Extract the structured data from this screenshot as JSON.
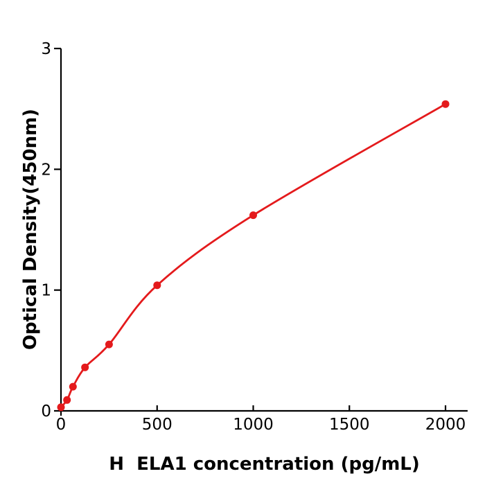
{
  "figure": {
    "background": "#ffffff"
  },
  "chart_data": {
    "type": "line",
    "subtype": "scatter-with-fitted-curve",
    "title": "",
    "xlabel": "H  ELA1 concentration (pg/mL)",
    "ylabel": "Optical Density(450nm)",
    "points": [
      {
        "x": 0,
        "y": 0.03
      },
      {
        "x": 31.25,
        "y": 0.09
      },
      {
        "x": 62.5,
        "y": 0.2
      },
      {
        "x": 125,
        "y": 0.36
      },
      {
        "x": 250,
        "y": 0.55
      },
      {
        "x": 500,
        "y": 1.04
      },
      {
        "x": 1000,
        "y": 1.62
      },
      {
        "x": 2000,
        "y": 2.54
      }
    ],
    "x_ticks": [
      0,
      500,
      1000,
      1500,
      2000
    ],
    "y_ticks": [
      0,
      1,
      2,
      3
    ],
    "xlim": [
      0,
      2115
    ],
    "ylim": [
      0,
      3
    ],
    "grid": false,
    "legend": false,
    "marker": "filled-circle",
    "colors": {
      "series": "#e41a1c",
      "axis": "#000000",
      "text": "#000000"
    }
  }
}
